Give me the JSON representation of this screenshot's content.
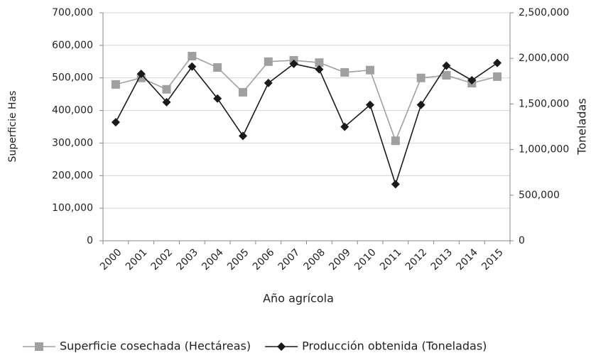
{
  "chart_data": {
    "type": "line",
    "x_label": "Año agrícola",
    "y_label": "Superficie Has",
    "y2_label": "Toneladas",
    "categories": [
      "2000",
      "2001",
      "2002",
      "2003",
      "2004",
      "2005",
      "2006",
      "2007",
      "2008",
      "2009",
      "2010",
      "2011",
      "2012",
      "2013",
      "2014",
      "2015"
    ],
    "series": [
      {
        "name": "Superficie cosechada (Hectáreas)",
        "color": "#a0a0a0",
        "marker": "square",
        "axis": "y",
        "values": [
          480000,
          500000,
          465000,
          567000,
          532000,
          456000,
          550000,
          554000,
          547000,
          517000,
          524000,
          307000,
          500000,
          508000,
          484000,
          504000
        ]
      },
      {
        "name": "Producción obtenida (Toneladas)",
        "color": "#1a1a1a",
        "marker": "diamond",
        "axis": "y2",
        "values": [
          1300000,
          1830000,
          1520000,
          1910000,
          1560000,
          1150000,
          1730000,
          1940000,
          1880000,
          1250000,
          1490000,
          620000,
          1490000,
          1920000,
          1760000,
          1950000
        ]
      }
    ],
    "ylim": [
      0,
      700000
    ],
    "yticks": [
      0,
      {
        "value": 100000,
        "label": "100,000"
      },
      {
        "value": 200000,
        "label": "200,000"
      },
      {
        "value": 300000,
        "label": "300,000"
      },
      {
        "value": 400000,
        "label": "400,000"
      },
      {
        "value": 500000,
        "label": "500,000"
      },
      {
        "value": 600000,
        "label": "600,000"
      },
      {
        "value": 700000,
        "label": "700,000"
      }
    ],
    "y2lim": [
      0,
      2500000
    ],
    "y2ticks": [
      0,
      {
        "value": 500000,
        "label": "500,000"
      },
      {
        "value": 1000000,
        "label": "1,000,000"
      },
      {
        "value": 1500000,
        "label": "1,500,000"
      },
      {
        "value": 2000000,
        "label": "2,000,000"
      },
      {
        "value": 2500000,
        "label": "2,500,000"
      }
    ],
    "grid": true,
    "legend": "bottom"
  }
}
